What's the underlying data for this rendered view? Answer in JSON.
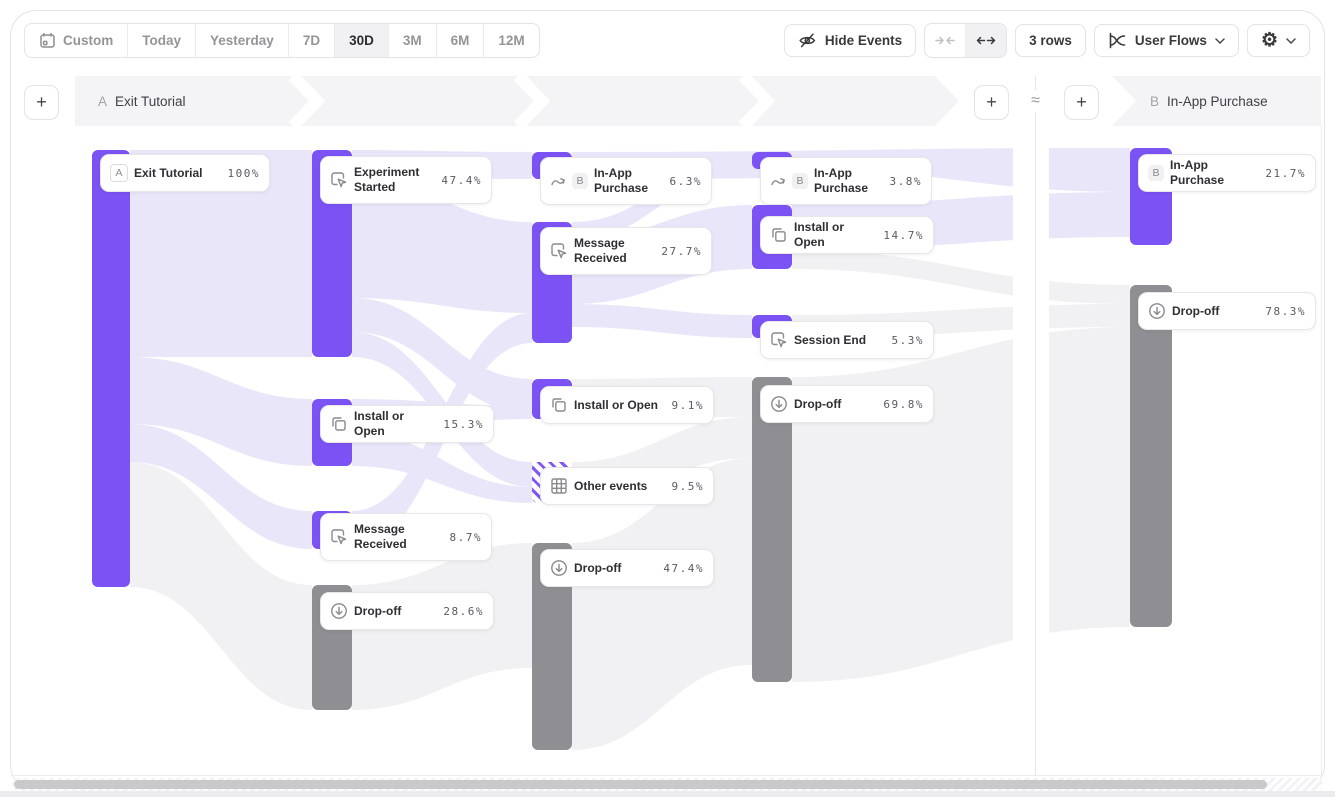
{
  "toolbar": {
    "date_ranges": [
      {
        "label": "Custom",
        "icon": "calendar-icon",
        "selected": false
      },
      {
        "label": "Today",
        "selected": false
      },
      {
        "label": "Yesterday",
        "selected": false
      },
      {
        "label": "7D",
        "selected": false
      },
      {
        "label": "30D",
        "selected": true
      },
      {
        "label": "3M",
        "selected": false
      },
      {
        "label": "6M",
        "selected": false
      },
      {
        "label": "12M",
        "selected": false
      }
    ],
    "hide_events": {
      "label": "Hide Events",
      "icon": "eye-off-icon"
    },
    "spacing_toggle": {
      "options": [
        "collapse",
        "expand"
      ],
      "selected": "expand"
    },
    "rows": {
      "label": "3 rows"
    },
    "view": {
      "label": "User Flows",
      "icon": "flows-icon"
    },
    "settings": {
      "glyph": "⚙",
      "icon": "gear-icon"
    }
  },
  "flow_header": {
    "left_badge": "A",
    "left_label": "Exit Tutorial",
    "right_badge": "B",
    "right_label": "In-App Purchase",
    "approx": "≈",
    "add": "+"
  },
  "sankey": {
    "type": "sankey-user-flow",
    "columns": [
      {
        "nodes": [
          {
            "id": "c1n1",
            "badge": "A",
            "name": "Exit Tutorial",
            "pct": "100%",
            "value": 100,
            "kind": "event"
          }
        ]
      },
      {
        "nodes": [
          {
            "id": "c2n1",
            "icon": "click",
            "name": "Experiment Started",
            "pct": "47.4%",
            "value": 47.4,
            "kind": "event"
          },
          {
            "id": "c2n2",
            "icon": "copy",
            "name": "Install or Open",
            "pct": "15.3%",
            "value": 15.3,
            "kind": "event"
          },
          {
            "id": "c2n3",
            "icon": "click",
            "name": "Message Received",
            "pct": "8.7%",
            "value": 8.7,
            "kind": "event"
          },
          {
            "id": "c2n4",
            "icon": "dropoff",
            "name": "Drop-off",
            "pct": "28.6%",
            "value": 28.6,
            "kind": "dropoff"
          }
        ]
      },
      {
        "nodes": [
          {
            "id": "c3n1",
            "icon": "jump",
            "badge": "B",
            "name": "In-App Purchase",
            "pct": "6.3%",
            "value": 6.3,
            "kind": "event"
          },
          {
            "id": "c3n2",
            "icon": "click",
            "name": "Message Received",
            "pct": "27.7%",
            "value": 27.7,
            "kind": "event"
          },
          {
            "id": "c3n3",
            "icon": "copy",
            "name": "Install or Open",
            "pct": "9.1%",
            "value": 9.1,
            "kind": "event"
          },
          {
            "id": "c3n4",
            "icon": "grid",
            "name": "Other events",
            "pct": "9.5%",
            "value": 9.5,
            "kind": "other"
          },
          {
            "id": "c3n5",
            "icon": "dropoff",
            "name": "Drop-off",
            "pct": "47.4%",
            "value": 47.4,
            "kind": "dropoff"
          }
        ]
      },
      {
        "nodes": [
          {
            "id": "c4n1",
            "icon": "jump",
            "badge": "B",
            "name": "In-App Purchase",
            "pct": "3.8%",
            "value": 3.8,
            "kind": "event"
          },
          {
            "id": "c4n2",
            "icon": "copy",
            "name": "Install or Open",
            "pct": "14.7%",
            "value": 14.7,
            "kind": "event"
          },
          {
            "id": "c4n3",
            "icon": "click",
            "name": "Session End",
            "pct": "5.3%",
            "value": 5.3,
            "kind": "event"
          },
          {
            "id": "c4n4",
            "icon": "dropoff",
            "name": "Drop-off",
            "pct": "69.8%",
            "value": 69.8,
            "kind": "dropoff"
          }
        ]
      },
      {
        "nodes": [
          {
            "id": "r1",
            "badge": "B",
            "name": "In-App Purchase",
            "pct": "21.7%",
            "value": 21.7,
            "kind": "event"
          },
          {
            "id": "r2",
            "icon": "dropoff",
            "name": "Drop-off",
            "pct": "78.3%",
            "value": 78.3,
            "kind": "dropoff"
          }
        ]
      }
    ]
  },
  "colors": {
    "accent": "#7B52F4",
    "dropoff": "#8F8F93",
    "ribbon_event": "#EAE6FA",
    "ribbon_drop": "#F1F1F3",
    "band": "#F4F4F6"
  }
}
